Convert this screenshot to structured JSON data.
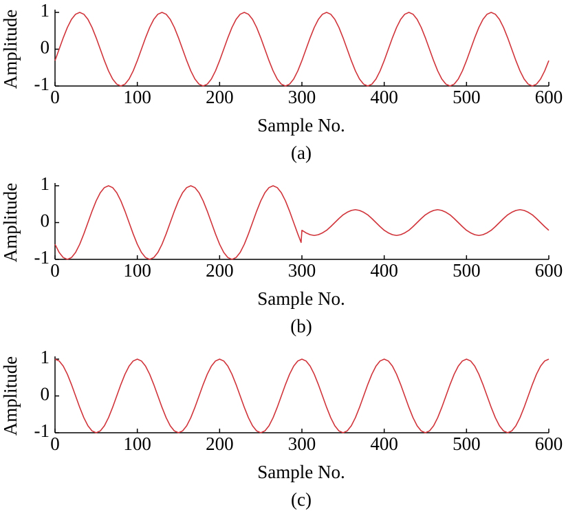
{
  "chart_data": [
    {
      "type": "line",
      "xlabel": "Sample No.",
      "ylabel": "Amplitude",
      "caption": "(a)",
      "color": "#d0343a",
      "xlim": [
        0,
        600
      ],
      "ylim": [
        -1,
        1
      ],
      "xticks": [
        0,
        100,
        200,
        300,
        400,
        500,
        600
      ],
      "yticks": [
        -1,
        0,
        1
      ],
      "x": [
        0,
        5,
        10,
        15,
        20,
        25,
        30,
        35,
        40,
        45,
        50,
        55,
        60,
        65,
        70,
        75,
        80,
        85,
        90,
        95,
        100,
        105,
        110,
        115,
        120,
        125,
        130,
        135,
        140,
        145,
        150,
        155,
        160,
        165,
        170,
        175,
        180,
        185,
        190,
        195,
        200,
        205,
        210,
        215,
        220,
        225,
        230,
        235,
        240,
        245,
        250,
        255,
        260,
        265,
        270,
        275,
        280,
        285,
        290,
        295,
        300,
        305,
        310,
        315,
        320,
        325,
        330,
        335,
        340,
        345,
        350,
        355,
        360,
        365,
        370,
        375,
        380,
        385,
        390,
        395,
        400,
        405,
        410,
        415,
        420,
        425,
        430,
        435,
        440,
        445,
        450,
        455,
        460,
        465,
        470,
        475,
        480,
        485,
        490,
        495,
        500,
        505,
        510,
        515,
        520,
        525,
        530,
        535,
        540,
        545,
        550,
        555,
        560,
        565,
        570,
        575,
        580,
        585,
        590,
        595,
        600
      ],
      "values": [
        -0.31,
        0,
        0.31,
        0.59,
        0.81,
        0.95,
        1,
        0.95,
        0.81,
        0.59,
        0.31,
        0,
        -0.31,
        -0.59,
        -0.81,
        -0.95,
        -1,
        -0.95,
        -0.81,
        -0.59,
        -0.31,
        0,
        0.31,
        0.59,
        0.81,
        0.95,
        1,
        0.95,
        0.81,
        0.59,
        0.31,
        0,
        -0.31,
        -0.59,
        -0.81,
        -0.95,
        -1,
        -0.95,
        -0.81,
        -0.59,
        -0.31,
        0,
        0.31,
        0.59,
        0.81,
        0.95,
        1,
        0.95,
        0.81,
        0.59,
        0.31,
        0,
        -0.31,
        -0.59,
        -0.81,
        -0.95,
        -1,
        -0.95,
        -0.81,
        -0.59,
        -0.31,
        0,
        0.31,
        0.59,
        0.81,
        0.95,
        1,
        0.95,
        0.81,
        0.59,
        0.31,
        0,
        -0.31,
        -0.59,
        -0.81,
        -0.95,
        -1,
        -0.95,
        -0.81,
        -0.59,
        -0.31,
        0,
        0.31,
        0.59,
        0.81,
        0.95,
        1,
        0.95,
        0.81,
        0.59,
        0.31,
        0,
        -0.31,
        -0.59,
        -0.81,
        -0.95,
        -1,
        -0.95,
        -0.81,
        -0.59,
        -0.31,
        0,
        0.31,
        0.59,
        0.81,
        0.95,
        1,
        0.95,
        0.81,
        0.59,
        0.31,
        0,
        -0.31,
        -0.59,
        -0.81,
        -0.95,
        -1,
        -0.95,
        -0.81,
        -0.59,
        -0.31
      ]
    },
    {
      "type": "line",
      "xlabel": "Sample No.",
      "ylabel": "Amplitude",
      "caption": "(b)",
      "color": "#d0343a",
      "xlim": [
        0,
        600
      ],
      "ylim": [
        -1,
        1
      ],
      "xticks": [
        0,
        100,
        200,
        300,
        400,
        500,
        600
      ],
      "yticks": [
        -1,
        0,
        1
      ],
      "x": [
        0,
        5,
        10,
        15,
        20,
        25,
        30,
        35,
        40,
        45,
        50,
        55,
        60,
        65,
        70,
        75,
        80,
        85,
        90,
        95,
        100,
        105,
        110,
        115,
        120,
        125,
        130,
        135,
        140,
        145,
        150,
        155,
        160,
        165,
        170,
        175,
        180,
        185,
        190,
        195,
        200,
        205,
        210,
        215,
        220,
        225,
        230,
        235,
        240,
        245,
        250,
        255,
        260,
        265,
        270,
        275,
        280,
        285,
        290,
        295,
        299,
        300,
        305,
        310,
        315,
        320,
        325,
        330,
        335,
        340,
        345,
        350,
        355,
        360,
        365,
        370,
        375,
        380,
        385,
        390,
        395,
        400,
        405,
        410,
        415,
        420,
        425,
        430,
        435,
        440,
        445,
        450,
        455,
        460,
        465,
        470,
        475,
        480,
        485,
        490,
        495,
        500,
        505,
        510,
        515,
        520,
        525,
        530,
        535,
        540,
        545,
        550,
        555,
        560,
        565,
        570,
        575,
        580,
        585,
        590,
        595,
        600
      ],
      "values": [
        -0.59,
        -0.81,
        -0.95,
        -1,
        -0.95,
        -0.81,
        -0.59,
        -0.31,
        0,
        0.31,
        0.59,
        0.81,
        0.95,
        1,
        0.95,
        0.81,
        0.59,
        0.31,
        0,
        -0.31,
        -0.59,
        -0.81,
        -0.95,
        -1,
        -0.95,
        -0.81,
        -0.59,
        -0.31,
        0,
        0.31,
        0.59,
        0.81,
        0.95,
        1,
        0.95,
        0.81,
        0.59,
        0.31,
        0,
        -0.31,
        -0.59,
        -0.81,
        -0.95,
        -1,
        -0.95,
        -0.81,
        -0.59,
        -0.31,
        0,
        0.31,
        0.59,
        0.81,
        0.95,
        1,
        0.95,
        0.81,
        0.59,
        0.31,
        0,
        -0.31,
        -0.54,
        -0.21,
        -0.28,
        -0.33,
        -0.35,
        -0.33,
        -0.28,
        -0.21,
        -0.11,
        0,
        0.11,
        0.21,
        0.28,
        0.33,
        0.35,
        0.33,
        0.28,
        0.21,
        0.11,
        0,
        -0.11,
        -0.21,
        -0.28,
        -0.33,
        -0.35,
        -0.33,
        -0.28,
        -0.21,
        -0.11,
        0,
        0.11,
        0.21,
        0.28,
        0.33,
        0.35,
        0.33,
        0.28,
        0.21,
        0.11,
        0,
        -0.11,
        -0.21,
        -0.28,
        -0.33,
        -0.35,
        -0.33,
        -0.28,
        -0.21,
        -0.11,
        0,
        0.11,
        0.21,
        0.28,
        0.33,
        0.35,
        0.33,
        0.28,
        0.21,
        0.11,
        0,
        -0.11,
        -0.21
      ]
    },
    {
      "type": "line",
      "xlabel": "Sample No.",
      "ylabel": "Amplitude",
      "caption": "(c)",
      "color": "#d0343a",
      "xlim": [
        0,
        600
      ],
      "ylim": [
        -1,
        1
      ],
      "xticks": [
        0,
        100,
        200,
        300,
        400,
        500,
        600
      ],
      "yticks": [
        -1,
        0,
        1
      ],
      "x": [
        0,
        5,
        10,
        15,
        20,
        25,
        30,
        35,
        40,
        45,
        50,
        55,
        60,
        65,
        70,
        75,
        80,
        85,
        90,
        95,
        100,
        105,
        110,
        115,
        120,
        125,
        130,
        135,
        140,
        145,
        150,
        155,
        160,
        165,
        170,
        175,
        180,
        185,
        190,
        195,
        200,
        205,
        210,
        215,
        220,
        225,
        230,
        235,
        240,
        245,
        250,
        255,
        260,
        265,
        270,
        275,
        280,
        285,
        290,
        295,
        300,
        305,
        310,
        315,
        320,
        325,
        330,
        335,
        340,
        345,
        350,
        355,
        360,
        365,
        370,
        375,
        380,
        385,
        390,
        395,
        400,
        405,
        410,
        415,
        420,
        425,
        430,
        435,
        440,
        445,
        450,
        455,
        460,
        465,
        470,
        475,
        480,
        485,
        490,
        495,
        500,
        505,
        510,
        515,
        520,
        525,
        530,
        535,
        540,
        545,
        550,
        555,
        560,
        565,
        570,
        575,
        580,
        585,
        590,
        595,
        600
      ],
      "values": [
        1,
        0.95,
        0.81,
        0.59,
        0.31,
        0,
        -0.31,
        -0.59,
        -0.81,
        -0.95,
        -1,
        -0.95,
        -0.81,
        -0.59,
        -0.31,
        0,
        0.31,
        0.59,
        0.81,
        0.95,
        1,
        0.95,
        0.81,
        0.59,
        0.31,
        0,
        -0.31,
        -0.59,
        -0.81,
        -0.95,
        -1,
        -0.95,
        -0.81,
        -0.59,
        -0.31,
        0,
        0.31,
        0.59,
        0.81,
        0.95,
        1,
        0.95,
        0.81,
        0.59,
        0.31,
        0,
        -0.31,
        -0.59,
        -0.81,
        -0.95,
        -1,
        -0.95,
        -0.81,
        -0.59,
        -0.31,
        0,
        0.31,
        0.59,
        0.81,
        0.95,
        1,
        0.95,
        0.81,
        0.59,
        0.31,
        0,
        -0.31,
        -0.59,
        -0.81,
        -0.95,
        -1,
        -0.95,
        -0.81,
        -0.59,
        -0.31,
        0,
        0.31,
        0.59,
        0.81,
        0.95,
        1,
        0.95,
        0.81,
        0.59,
        0.31,
        0,
        -0.31,
        -0.59,
        -0.81,
        -0.95,
        -1,
        -0.95,
        -0.81,
        -0.59,
        -0.31,
        0,
        0.31,
        0.59,
        0.81,
        0.95,
        1,
        0.95,
        0.81,
        0.59,
        0.31,
        0,
        -0.31,
        -0.59,
        -0.81,
        -0.95,
        -1,
        -0.95,
        -0.81,
        -0.59,
        -0.31,
        0,
        0.31,
        0.59,
        0.81,
        0.95,
        1
      ]
    }
  ]
}
